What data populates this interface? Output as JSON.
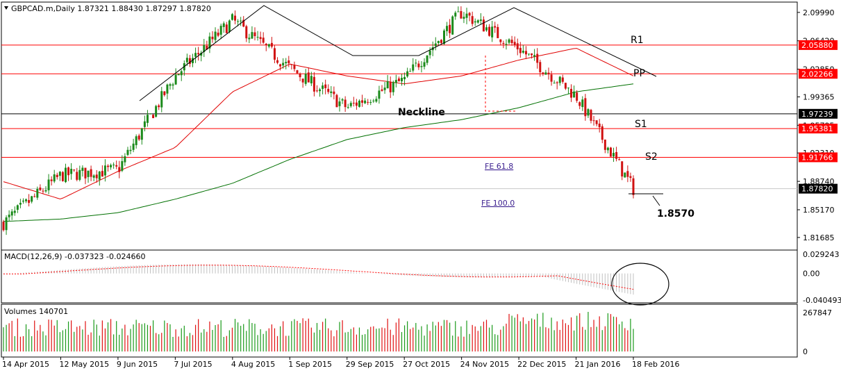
{
  "header": {
    "symbol_line": "GBPCAD.m,Daily  1.87321 1.88430 1.87297 1.87820",
    "macd_line": "MACD(12,26,9) -0.037323 -0.024660",
    "volumes_line": "Volumes 140701"
  },
  "colors": {
    "bull_candle": "#1a8a1a",
    "bear_candle": "#d01010",
    "level_line": "#ff0000",
    "neckline": "#000000",
    "ma_fast": "#e00000",
    "ma_slow": "#007000",
    "label_bg_red": "#ff0000",
    "label_bg_black": "#000000",
    "volume_bull": "#1a9a1a",
    "volume_bear": "#e01010",
    "macd_hist": "#c0c0c0",
    "macd_signal": "#ff0000"
  },
  "price_axis": {
    "ticks": [
      "2.09990",
      "2.06420",
      "2.02850",
      "1.99365",
      "1.95795",
      "1.92310",
      "1.88740",
      "1.85170",
      "1.81685"
    ],
    "level_labels": [
      {
        "name": "R1",
        "value": "2.05880",
        "color": "red"
      },
      {
        "name": "PP",
        "value": "2.02266",
        "color": "red"
      },
      {
        "name": "Neckline",
        "value": "1.97239",
        "color": "black"
      },
      {
        "name": "S1",
        "value": "1.95381",
        "color": "red"
      },
      {
        "name": "S2",
        "value": "1.91766",
        "color": "red"
      },
      {
        "name": "Last",
        "value": "1.87820",
        "color": "black"
      }
    ]
  },
  "annotations": {
    "r1": "R1",
    "pp": "PP",
    "s1": "S1",
    "s2": "S2",
    "neckline": "Neckline",
    "target": "1.8570",
    "fe618": "FE 61.8",
    "fe100": "FE 100.0"
  },
  "macd_axis": {
    "ticks": [
      "0.029243",
      "0.00",
      "-0.040493"
    ]
  },
  "volume_axis": {
    "ticks": [
      "267847",
      "0"
    ]
  },
  "time_axis": {
    "labels": [
      "14 Apr 2015",
      "12 May 2015",
      "9 Jun 2015",
      "7 Jul 2015",
      "4 Aug 2015",
      "1 Sep 2015",
      "29 Sep 2015",
      "27 Oct 2015",
      "24 Nov 2015",
      "22 Dec 2015",
      "21 Jan 2016",
      "18 Feb 2016"
    ]
  },
  "chart_data": {
    "type": "candlestick",
    "symbol": "GBPCAD.m",
    "timeframe": "Daily",
    "last": {
      "open": 1.87321,
      "high": 1.8843,
      "low": 1.87297,
      "close": 1.8782
    },
    "ylim": [
      1.808,
      2.1085
    ],
    "levels": {
      "R1": 2.0588,
      "PP": 2.02266,
      "Neckline": 1.97239,
      "S1": 1.95381,
      "S2": 1.91766
    },
    "target": 1.857,
    "close_anchors": [
      {
        "date": "14 Apr 2015",
        "close": 1.835
      },
      {
        "date": "12 May 2015",
        "close": 1.895
      },
      {
        "date": "9 Jun 2015",
        "close": 1.902
      },
      {
        "date": "7 Jul 2015",
        "close": 2.02
      },
      {
        "date": "4 Aug 2015",
        "close": 2.09
      },
      {
        "date": "1 Sep 2015",
        "close": 2.03
      },
      {
        "date": "29 Sep 2015",
        "close": 1.98
      },
      {
        "date": "27 Oct 2015",
        "close": 2.015
      },
      {
        "date": "24 Nov 2015",
        "close": 2.1
      },
      {
        "date": "22 Dec 2015",
        "close": 2.055
      },
      {
        "date": "21 Jan 2016",
        "close": 1.995
      },
      {
        "date": "18 Feb 2016",
        "close": 1.878
      }
    ],
    "ma_fast": [
      {
        "date": "14 Apr 2015",
        "value": 1.887
      },
      {
        "date": "12 May 2015",
        "value": 1.865
      },
      {
        "date": "9 Jun 2015",
        "value": 1.9
      },
      {
        "date": "7 Jul 2015",
        "value": 1.93
      },
      {
        "date": "4 Aug 2015",
        "value": 2.0
      },
      {
        "date": "1 Sep 2015",
        "value": 2.035
      },
      {
        "date": "29 Sep 2015",
        "value": 2.02
      },
      {
        "date": "27 Oct 2015",
        "value": 2.01
      },
      {
        "date": "24 Nov 2015",
        "value": 2.02
      },
      {
        "date": "22 Dec 2015",
        "value": 2.04
      },
      {
        "date": "21 Jan 2016",
        "value": 2.055
      },
      {
        "date": "18 Feb 2016",
        "value": 2.02
      }
    ],
    "ma_slow": [
      {
        "date": "14 Apr 2015",
        "value": 1.837
      },
      {
        "date": "12 May 2015",
        "value": 1.84
      },
      {
        "date": "9 Jun 2015",
        "value": 1.848
      },
      {
        "date": "7 Jul 2015",
        "value": 1.865
      },
      {
        "date": "4 Aug 2015",
        "value": 1.885
      },
      {
        "date": "1 Sep 2015",
        "value": 1.915
      },
      {
        "date": "29 Sep 2015",
        "value": 1.94
      },
      {
        "date": "27 Oct 2015",
        "value": 1.955
      },
      {
        "date": "24 Nov 2015",
        "value": 1.965
      },
      {
        "date": "22 Dec 2015",
        "value": 1.98
      },
      {
        "date": "21 Jan 2016",
        "value": 2.0
      },
      {
        "date": "18 Feb 2016",
        "value": 2.01
      }
    ]
  }
}
